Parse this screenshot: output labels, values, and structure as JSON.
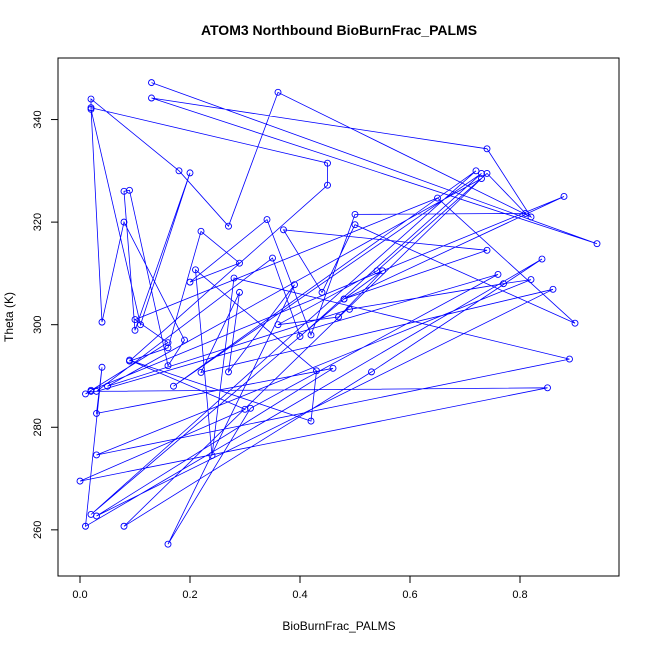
{
  "chart_data": {
    "type": "line",
    "title": "ATOM3 Northbound BioBurnFrac_PALMS",
    "xlabel": "BioBurnFrac_PALMS",
    "ylabel": "Theta (K)",
    "xlim": [
      -0.04,
      0.98
    ],
    "ylim": [
      251,
      352
    ],
    "xticks": [
      "0.0",
      "0.2",
      "0.4",
      "0.6",
      "0.8"
    ],
    "yticks": [
      "260",
      "280",
      "300",
      "320",
      "340"
    ],
    "grid": false,
    "legend": "none",
    "series_color": "#0000ff",
    "marker": "open-circle",
    "series": [
      {
        "x": [
          0.13,
          0.94,
          0.13,
          0.74,
          0.82,
          0.36,
          0.27,
          0.18,
          0.02,
          0.02,
          0.11,
          0.2,
          0.1,
          0.08,
          0.09,
          0.16,
          0.19,
          0.08,
          0.04,
          0.02,
          0.45,
          0.45,
          0.09,
          0.16,
          0.22,
          0.29,
          0.2,
          0.34,
          0.42,
          0.5,
          0.81,
          0.74,
          0.54,
          0.36,
          0.47,
          0.55,
          0.48,
          0.74,
          0.37,
          0.44,
          0.5,
          0.9,
          0.65,
          0.1,
          0.16,
          0.01,
          0.02,
          0.85,
          0.0,
          0.3,
          0.09,
          0.42,
          0.43,
          0.21,
          0.24,
          0.28,
          0.89,
          0.03,
          0.82,
          0.77,
          0.49,
          0.05,
          0.73,
          0.08,
          0.53,
          0.84,
          0.01,
          0.04,
          0.03,
          0.46,
          0.03,
          0.86,
          0.22,
          0.29,
          0.27,
          0.39,
          0.16,
          0.31,
          0.76,
          0.03,
          0.35,
          0.4,
          0.73,
          0.17,
          0.72,
          0.02,
          0.48,
          0.88,
          0.02
        ],
        "y": [
          347.2,
          315.8,
          344.2,
          334.3,
          321.0,
          345.3,
          319.2,
          330.0,
          344.0,
          342.0,
          300.0,
          329.6,
          298.9,
          326.0,
          326.2,
          292.0,
          297.0,
          320.0,
          300.5,
          342.3,
          331.5,
          327.2,
          292.9,
          295.5,
          318.2,
          312.0,
          308.3,
          320.5,
          298.0,
          321.5,
          321.7,
          329.5,
          310.5,
          300.0,
          301.5,
          310.5,
          305.0,
          314.5,
          318.5,
          306.3,
          319.5,
          300.3,
          324.7,
          301.0,
          296.5,
          286.5,
          287.0,
          287.7,
          269.5,
          283.5,
          293.1,
          281.2,
          291.0,
          310.7,
          274.5,
          309.1,
          293.3,
          274.6,
          308.8,
          308.0,
          303.0,
          288.0,
          328.5,
          260.7,
          290.8,
          312.8,
          260.7,
          291.7,
          282.7,
          291.5,
          262.7,
          306.9,
          290.7,
          306.3,
          290.8,
          307.8,
          257.2,
          283.7,
          309.8,
          287.0,
          313.0,
          297.7,
          329.5,
          288.0,
          330.0,
          263.0,
          305.0,
          325.0,
          287.2
        ]
      }
    ]
  }
}
